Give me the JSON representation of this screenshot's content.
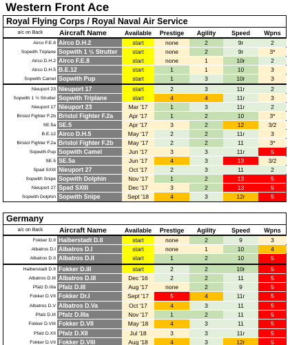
{
  "title": "Western Front Ace",
  "columns": {
    "back": "a/c on Back",
    "name": "Aircraft Name",
    "available": "Available",
    "prestige": "Prestige",
    "agility": "Agility",
    "speed": "Speed",
    "wpns": "Wpns"
  },
  "sections": [
    {
      "title": "Royal Flying Corps / Royal Naval Air Service",
      "groups": [
        [
          {
            "back": "Airco F.E.8",
            "name": "Airco D.H.2",
            "available": "start",
            "prestige": "none",
            "agility": "2",
            "speed": "9r",
            "wpns": "2"
          },
          {
            "back": "Sopwith Triplane",
            "name": "Sopwith 1 ½ Strutter",
            "available": "start",
            "prestige": "none",
            "agility": "2",
            "speed": "9r",
            "wpns": "3*"
          },
          {
            "back": "Airco D.H.2",
            "name": "Airco F.E.8",
            "available": "start",
            "prestige": "none",
            "agility": "1",
            "speed": "10r",
            "wpns": "2"
          },
          {
            "back": "Airco D.H.5",
            "name": "B.E.12",
            "available": "start",
            "prestige": "1",
            "agility": "1",
            "speed": "10",
            "wpns": "3"
          },
          {
            "back": "Sopwith Camel",
            "name": "Sopwith Pup",
            "available": "start",
            "prestige": "1",
            "agility": "3",
            "speed": "10r",
            "wpns": "3"
          }
        ],
        [
          {
            "back": "Nieuport 23",
            "name": "Nieuport 17",
            "available": "start",
            "prestige": "2",
            "agility": "3",
            "speed": "11r",
            "wpns": "2"
          },
          {
            "back": "Sopwith 1 ½ Strutter",
            "name": "Sopwith Triplane",
            "available": "start",
            "prestige": "4",
            "agility": "4",
            "speed": "11r",
            "wpns": "3"
          },
          {
            "back": "Nieuport 17",
            "name": "Nieuport 23",
            "available": "Mar '17",
            "prestige": "1",
            "agility": "3",
            "speed": "11r",
            "wpns": "2"
          },
          {
            "back": "Bristol Fighter F.2b",
            "name": "Bristol Fighter F.2a",
            "available": "Apr '17",
            "prestige": "1",
            "agility": "2",
            "speed": "10",
            "wpns": "3*"
          },
          {
            "back": "SE.5a",
            "name": "SE.5",
            "available": "Apr '17",
            "prestige": "3",
            "agility": "2",
            "speed": "12",
            "wpns": "3/2"
          },
          {
            "back": "B.E.12",
            "name": "Airco D.H.5",
            "available": "May '17",
            "prestige": "2",
            "agility": "2",
            "speed": "11r",
            "wpns": "3"
          },
          {
            "back": "Bristol Fighter F.2a",
            "name": "Bristol Fighter F.2b",
            "available": "May '17",
            "prestige": "2",
            "agility": "2",
            "speed": "11",
            "wpns": "3*"
          },
          {
            "back": "Sopwith Pup",
            "name": "Sopwith Camel",
            "available": "Jun '17",
            "prestige": "3",
            "agility": "3",
            "speed": "11r",
            "wpns": "5"
          },
          {
            "back": "SE.5",
            "name": "SE.5a",
            "available": "Jun '17",
            "prestige": "4",
            "agility": "3",
            "speed": "13",
            "wpns": "3/2"
          },
          {
            "back": "Spad SXIII",
            "name": "Nieuport 27",
            "available": "Oct '17",
            "prestige": "2",
            "agility": "3",
            "speed": "11",
            "wpns": "2"
          },
          {
            "back": "Sopwith Snipe",
            "name": "Sopwith Dolphin",
            "available": "Nov '17",
            "prestige": "1",
            "agility": "2",
            "speed": "13",
            "wpns": "5"
          },
          {
            "back": "Nieuport 27",
            "name": "Spad SXIII",
            "available": "Dec '17",
            "prestige": "3",
            "agility": "2",
            "speed": "13",
            "wpns": "5"
          },
          {
            "back": "Sopwith Dolphin",
            "name": "Sopwith Snipe",
            "available": "Sept '18",
            "prestige": "4",
            "agility": "3",
            "speed": "12r",
            "wpns": "5"
          }
        ]
      ]
    },
    {
      "title": "Germany",
      "groups": [
        [
          {
            "back": "Fokker D.II",
            "name": "Halberstadt D.II",
            "available": "start",
            "prestige": "none",
            "agility": "2",
            "speed": "9",
            "wpns": "3"
          },
          {
            "back": "Albatros D.I",
            "name": "Albatros D.I",
            "available": "start",
            "prestige": "none",
            "agility": "1",
            "speed": "10",
            "wpns": "4"
          },
          {
            "back": "Albatros D.II",
            "name": "Albatros D.II",
            "available": "start",
            "prestige": "1",
            "agility": "2",
            "speed": "10",
            "wpns": "5"
          }
        ],
        [
          {
            "back": "Halberstadt D.II",
            "name": "Fokker D.III",
            "available": "start",
            "prestige": "2",
            "agility": "2",
            "speed": "10r",
            "wpns": "5"
          },
          {
            "back": "Albatros D.III",
            "name": "Albatros D.III",
            "available": "Dec '16",
            "prestige": "2",
            "agility": "2",
            "speed": "11",
            "wpns": "5"
          },
          {
            "back": "Pfalz D.IIIa",
            "name": "Pfalz D.III",
            "available": "Aug '17",
            "prestige": "none",
            "agility": "2",
            "speed": "9",
            "wpns": "5"
          },
          {
            "back": "Fokker D.VII",
            "name": "Fokker Dr.I",
            "available": "Sept '17",
            "prestige": "5",
            "agility": "4",
            "speed": "11r",
            "wpns": "5"
          },
          {
            "back": "Albatros D.V",
            "name": "Albatros D.Va",
            "available": "Oct '17",
            "prestige": "4",
            "agility": "3",
            "speed": "11",
            "wpns": "5"
          },
          {
            "back": "Pfalz D.III",
            "name": "Pfalz D.IIIa",
            "available": "Nov '17",
            "prestige": "1",
            "agility": "2",
            "speed": "11",
            "wpns": "5"
          },
          {
            "back": "Fokker D.VIII",
            "name": "Fokker D.VII",
            "available": "May '18",
            "prestige": "4",
            "agility": "3",
            "speed": "11",
            "wpns": "5"
          },
          {
            "back": "Pfalz D.XII",
            "name": "Pfalz D.XII",
            "available": "Jul '18",
            "prestige": "3",
            "agility": "3",
            "speed": "11r",
            "wpns": "5"
          },
          {
            "back": "Fokker D.VII",
            "name": "Fokker D.VIII",
            "available": "Aug '18",
            "prestige": "4",
            "agility": "3",
            "speed": "12r",
            "wpns": "5"
          }
        ]
      ]
    }
  ],
  "colors": {
    "yellow": "#ffff00",
    "light_yellow": "#fff2cc",
    "light_green": "#e2efda",
    "green": "#c6e0b4",
    "orange": "#ffc000",
    "red": "#ff0000",
    "name_gray": "#7f7f7f"
  }
}
